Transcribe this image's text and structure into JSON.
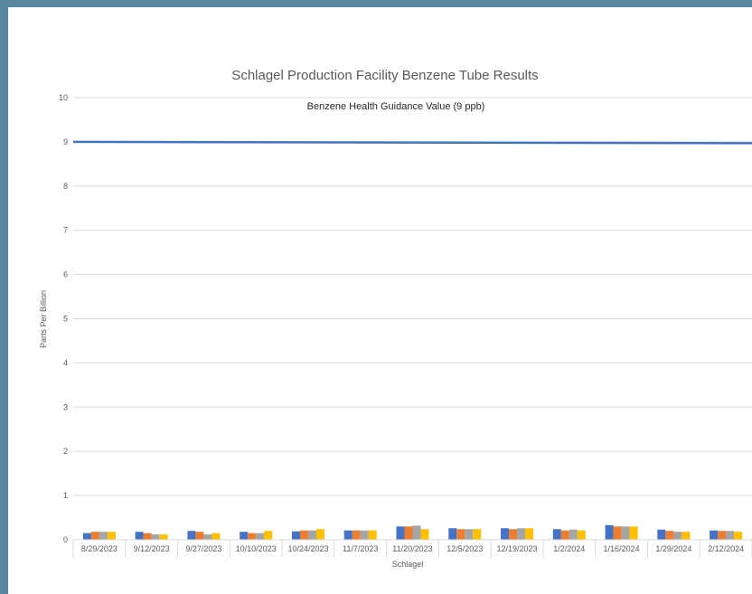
{
  "chart_data": {
    "type": "bar",
    "title": "Schlagel Production Facility Benzene Tube Results",
    "xlabel": "Schlagel",
    "ylabel": "Parts Per Billion",
    "ylim": [
      0,
      10
    ],
    "yticks": [
      "0",
      "1",
      "2",
      "3",
      "4",
      "5",
      "6",
      "7",
      "8",
      "9",
      "10"
    ],
    "grid": true,
    "categories": [
      "8/29/2023",
      "9/12/2023",
      "9/27/2023",
      "10/10/2023",
      "10/24/2023",
      "11/7/2023",
      "11/20/2023",
      "12/5/2023",
      "12/19/2023",
      "1/2/2024",
      "1/16/2024",
      "1/29/2024",
      "2/12/2024"
    ],
    "series": [
      {
        "color": "#4472c4",
        "values": [
          0.15,
          0.18,
          0.2,
          0.18,
          0.19,
          0.21,
          0.3,
          0.26,
          0.26,
          0.24,
          0.33,
          0.23,
          0.21
        ]
      },
      {
        "color": "#ed7d31",
        "values": [
          0.18,
          0.15,
          0.18,
          0.15,
          0.21,
          0.21,
          0.3,
          0.24,
          0.24,
          0.21,
          0.3,
          0.2,
          0.2
        ]
      },
      {
        "color": "#a5a5a5",
        "values": [
          0.18,
          0.12,
          0.12,
          0.15,
          0.21,
          0.21,
          0.32,
          0.24,
          0.26,
          0.23,
          0.3,
          0.18,
          0.2
        ]
      },
      {
        "color": "#ffc000",
        "values": [
          0.18,
          0.12,
          0.15,
          0.2,
          0.24,
          0.21,
          0.24,
          0.24,
          0.26,
          0.21,
          0.3,
          0.18,
          0.18
        ]
      }
    ],
    "reference_line": {
      "label": "Benzene Health Guidance Value (9 ppb)",
      "value": 9,
      "color": "#4472c4"
    }
  }
}
